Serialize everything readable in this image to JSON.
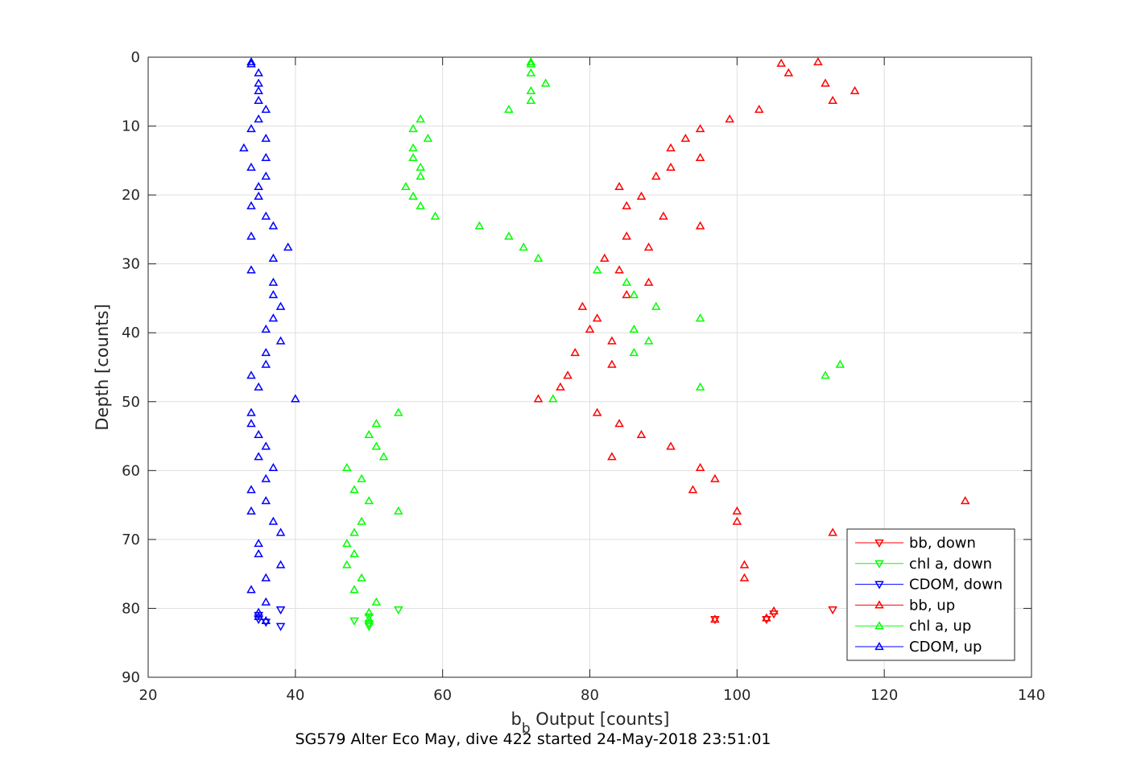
{
  "chart_data": {
    "type": "scatter",
    "title": "SG579 Alter Eco May, dive 422 started 24-May-2018 23:51:01",
    "xlabel_main": "b",
    "xlabel_sub": "b",
    "xlabel_rest": " Output [counts]",
    "ylabel": "Depth [counts]",
    "xlim": [
      20,
      140
    ],
    "ylim": [
      0,
      90
    ],
    "y_reversed": true,
    "xticks": [
      20,
      40,
      60,
      80,
      100,
      120,
      140
    ],
    "yticks": [
      0,
      10,
      20,
      30,
      40,
      50,
      60,
      70,
      80,
      90
    ],
    "grid": true,
    "legend_position": "bottom-right",
    "series": [
      {
        "name": "bb, down",
        "color": "#ff0000",
        "marker": "triangle-down",
        "points": [
          [
            113,
            80.2
          ],
          [
            105,
            80.8
          ],
          [
            104,
            81.6
          ],
          [
            97,
            81.6
          ]
        ]
      },
      {
        "name": "chl a, down",
        "color": "#00ff00",
        "marker": "triangle-down",
        "points": [
          [
            54,
            80.2
          ],
          [
            50,
            81.2
          ],
          [
            48,
            81.8
          ],
          [
            50,
            82.2
          ],
          [
            50,
            82.6
          ]
        ]
      },
      {
        "name": "CDOM, down",
        "color": "#0000ff",
        "marker": "triangle-down",
        "points": [
          [
            38,
            80.2
          ],
          [
            35,
            81.0
          ],
          [
            35,
            81.6
          ],
          [
            36,
            82.0
          ],
          [
            38,
            82.6
          ]
        ]
      },
      {
        "name": "bb, up",
        "color": "#ff0000",
        "marker": "triangle-up",
        "points": [
          [
            111,
            0.7
          ],
          [
            106,
            0.9
          ],
          [
            107,
            2.3
          ],
          [
            112,
            3.8
          ],
          [
            116,
            4.9
          ],
          [
            113,
            6.3
          ],
          [
            103,
            7.6
          ],
          [
            99,
            9.0
          ],
          [
            95,
            10.4
          ],
          [
            93,
            11.8
          ],
          [
            91,
            13.2
          ],
          [
            95,
            14.6
          ],
          [
            91,
            16.0
          ],
          [
            89,
            17.3
          ],
          [
            84,
            18.8
          ],
          [
            87,
            20.2
          ],
          [
            85,
            21.6
          ],
          [
            90,
            23.1
          ],
          [
            95,
            24.5
          ],
          [
            85,
            26.0
          ],
          [
            88,
            27.6
          ],
          [
            82,
            29.2
          ],
          [
            84,
            30.9
          ],
          [
            88,
            32.7
          ],
          [
            85,
            34.5
          ],
          [
            79,
            36.2
          ],
          [
            81,
            37.9
          ],
          [
            80,
            39.5
          ],
          [
            83,
            41.2
          ],
          [
            78,
            42.9
          ],
          [
            83,
            44.6
          ],
          [
            77,
            46.2
          ],
          [
            76,
            47.9
          ],
          [
            73,
            49.6
          ],
          [
            81,
            51.6
          ],
          [
            84,
            53.2
          ],
          [
            87,
            54.8
          ],
          [
            91,
            56.5
          ],
          [
            83,
            58.0
          ],
          [
            95,
            59.6
          ],
          [
            97,
            61.2
          ],
          [
            94,
            62.8
          ],
          [
            131,
            64.4
          ],
          [
            100,
            65.9
          ],
          [
            100,
            67.4
          ],
          [
            113,
            69.0
          ],
          [
            101,
            73.7
          ],
          [
            101,
            75.6
          ],
          [
            105,
            80.4
          ],
          [
            104,
            81.4
          ],
          [
            97,
            81.6
          ]
        ]
      },
      {
        "name": "chl a, up",
        "color": "#00ff00",
        "marker": "triangle-up",
        "points": [
          [
            72,
            0.7
          ],
          [
            72,
            1.0
          ],
          [
            72,
            2.3
          ],
          [
            74,
            3.8
          ],
          [
            72,
            4.9
          ],
          [
            72,
            6.3
          ],
          [
            69,
            7.6
          ],
          [
            57,
            9.0
          ],
          [
            56,
            10.4
          ],
          [
            58,
            11.8
          ],
          [
            56,
            13.2
          ],
          [
            56,
            14.6
          ],
          [
            57,
            16.0
          ],
          [
            57,
            17.3
          ],
          [
            55,
            18.8
          ],
          [
            56,
            20.2
          ],
          [
            57,
            21.6
          ],
          [
            59,
            23.1
          ],
          [
            65,
            24.5
          ],
          [
            69,
            26.0
          ],
          [
            71,
            27.6
          ],
          [
            73,
            29.2
          ],
          [
            81,
            30.9
          ],
          [
            85,
            32.7
          ],
          [
            86,
            34.5
          ],
          [
            89,
            36.2
          ],
          [
            95,
            37.9
          ],
          [
            86,
            39.5
          ],
          [
            88,
            41.2
          ],
          [
            86,
            42.9
          ],
          [
            114,
            44.6
          ],
          [
            112,
            46.2
          ],
          [
            95,
            47.9
          ],
          [
            75,
            49.6
          ],
          [
            54,
            51.6
          ],
          [
            51,
            53.2
          ],
          [
            50,
            54.8
          ],
          [
            51,
            56.5
          ],
          [
            52,
            58.0
          ],
          [
            47,
            59.6
          ],
          [
            49,
            61.2
          ],
          [
            48,
            62.8
          ],
          [
            50,
            64.4
          ],
          [
            54,
            65.9
          ],
          [
            49,
            67.4
          ],
          [
            48,
            69.0
          ],
          [
            47,
            70.6
          ],
          [
            48,
            72.1
          ],
          [
            47,
            73.7
          ],
          [
            49,
            75.6
          ],
          [
            48,
            77.3
          ],
          [
            51,
            79.1
          ],
          [
            50,
            80.6
          ],
          [
            50,
            81.6
          ]
        ]
      },
      {
        "name": "CDOM, up",
        "color": "#0000ff",
        "marker": "triangle-up",
        "points": [
          [
            34,
            0.7
          ],
          [
            34,
            1.0
          ],
          [
            35,
            2.3
          ],
          [
            35,
            3.8
          ],
          [
            35,
            4.9
          ],
          [
            35,
            6.3
          ],
          [
            36,
            7.6
          ],
          [
            35,
            9.0
          ],
          [
            34,
            10.4
          ],
          [
            36,
            11.8
          ],
          [
            33,
            13.2
          ],
          [
            36,
            14.6
          ],
          [
            34,
            16.0
          ],
          [
            36,
            17.3
          ],
          [
            35,
            18.8
          ],
          [
            35,
            20.2
          ],
          [
            34,
            21.6
          ],
          [
            36,
            23.1
          ],
          [
            37,
            24.5
          ],
          [
            34,
            26.0
          ],
          [
            39,
            27.6
          ],
          [
            37,
            29.2
          ],
          [
            34,
            30.9
          ],
          [
            37,
            32.7
          ],
          [
            37,
            34.5
          ],
          [
            38,
            36.2
          ],
          [
            37,
            37.9
          ],
          [
            36,
            39.5
          ],
          [
            38,
            41.2
          ],
          [
            36,
            42.9
          ],
          [
            36,
            44.6
          ],
          [
            34,
            46.2
          ],
          [
            35,
            47.9
          ],
          [
            40,
            49.6
          ],
          [
            34,
            51.6
          ],
          [
            34,
            53.2
          ],
          [
            35,
            54.8
          ],
          [
            36,
            56.5
          ],
          [
            35,
            58.0
          ],
          [
            37,
            59.6
          ],
          [
            36,
            61.2
          ],
          [
            34,
            62.8
          ],
          [
            36,
            64.4
          ],
          [
            34,
            65.9
          ],
          [
            37,
            67.4
          ],
          [
            38,
            69.0
          ],
          [
            35,
            70.6
          ],
          [
            35,
            72.1
          ],
          [
            38,
            73.7
          ],
          [
            36,
            75.6
          ],
          [
            34,
            77.3
          ],
          [
            36,
            79.1
          ],
          [
            35,
            80.6
          ],
          [
            35,
            81.2
          ],
          [
            36,
            81.8
          ]
        ]
      }
    ]
  }
}
